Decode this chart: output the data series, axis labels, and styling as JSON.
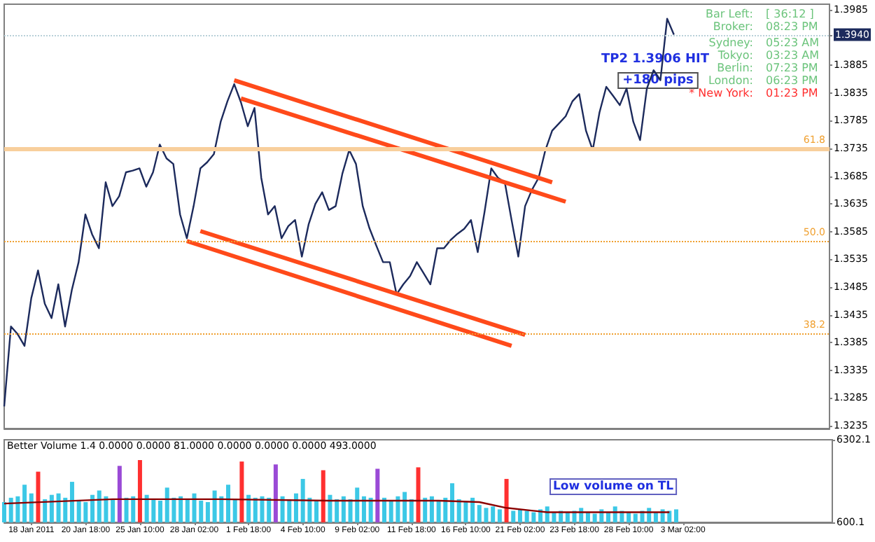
{
  "chart_data": [
    {
      "type": "line",
      "tick_labels": "y",
      "grid": false,
      "marker": "none",
      "ylim": [
        1.323,
        1.3995
      ],
      "yticks": [
        1.3985,
        {
          "value": 1.394,
          "label": "1.3940"
        },
        1.3885,
        1.3835,
        1.3785,
        1.3735,
        1.3685,
        1.3635,
        1.3585,
        1.3535,
        1.3485,
        1.3435,
        1.3385,
        1.3335,
        1.3285,
        1.3235
      ],
      "categories": [
        null,
        null,
        null,
        null,
        null,
        null,
        null,
        null,
        null,
        null,
        null,
        null,
        null,
        null,
        null,
        null,
        null,
        null,
        null,
        null,
        null,
        null,
        null,
        null,
        null,
        null,
        null,
        null,
        null,
        null,
        null,
        null,
        null,
        null,
        null,
        null,
        null,
        null,
        null,
        null,
        null,
        null,
        null,
        null,
        null,
        null,
        null,
        null,
        null,
        null,
        null,
        null,
        null,
        null,
        null,
        null,
        null,
        null,
        null,
        null,
        null,
        null,
        null,
        null,
        null,
        null,
        null,
        null,
        null,
        null,
        null,
        null,
        null,
        null,
        null,
        null,
        null,
        null,
        null,
        null,
        null,
        null,
        null,
        null,
        null,
        null,
        null,
        null,
        null,
        null,
        null,
        null,
        null,
        null,
        null,
        null,
        null,
        null,
        null,
        null,
        null,
        null,
        null,
        null,
        null,
        null,
        null,
        null,
        null,
        null,
        null,
        null,
        null,
        null,
        null,
        null,
        null,
        null,
        null,
        null,
        null,
        null,
        null
      ],
      "series": [
        {
          "color": "#1c2a5c",
          "values": [
            1.327,
            1.3414,
            1.34,
            1.3379,
            1.3465,
            1.3515,
            1.3455,
            1.3429,
            1.349,
            1.3414,
            1.348,
            1.353,
            1.3616,
            1.358,
            1.3555,
            1.3674,
            1.3631,
            1.3649,
            1.3692,
            1.3695,
            1.3699,
            1.3666,
            1.3692,
            1.3742,
            1.3717,
            1.3707,
            1.3616,
            1.3573,
            1.3631,
            1.3699,
            1.371,
            1.3725,
            1.3783,
            1.382,
            1.3851,
            1.3818,
            1.3775,
            1.3808,
            1.3682,
            1.3616,
            1.3631,
            1.3573,
            1.3595,
            1.3606,
            1.354,
            1.3598,
            1.3635,
            1.3656,
            1.3624,
            1.3631,
            1.369,
            1.3732,
            1.3707,
            1.3631,
            1.3591,
            1.356,
            1.353,
            1.353,
            1.3472,
            1.349,
            1.3505,
            1.353,
            1.351,
            1.349,
            1.3555,
            1.3555,
            1.357,
            1.3581,
            1.359,
            1.3606,
            1.3548,
            1.362,
            1.3699,
            1.3682,
            1.3674,
            1.3606,
            1.354,
            1.3631,
            1.366,
            1.3682,
            1.3732,
            1.3767,
            1.378,
            1.3793,
            1.382,
            1.3833,
            1.3767,
            1.3732,
            1.38,
            1.3846,
            1.383,
            1.3813,
            1.3843,
            1.3783,
            1.375,
            1.3843,
            1.3876,
            1.3858,
            1.3969,
            1.394,
            null,
            null,
            null,
            null,
            null,
            null,
            null,
            null,
            null,
            null,
            null,
            null,
            null,
            null,
            null,
            null,
            null,
            null,
            null,
            null,
            null,
            null,
            null
          ]
        },
        {
          "color": "#ff4a1a",
          "values": [
            null,
            null,
            null,
            null,
            null,
            null,
            null,
            null,
            null,
            null,
            null,
            null,
            null,
            null,
            null,
            null,
            null,
            null,
            null,
            null,
            null,
            null,
            null,
            null,
            null,
            null,
            null,
            null,
            null,
            null,
            null,
            null,
            null,
            null,
            1.3858,
            null,
            null,
            null,
            null,
            null,
            null,
            null,
            null,
            null,
            null,
            null,
            null,
            null,
            null,
            null,
            null,
            null,
            null,
            null,
            null,
            null,
            null,
            null,
            null,
            null,
            null,
            null,
            null,
            null,
            null,
            null,
            null,
            null,
            null,
            null,
            null,
            null,
            null,
            null,
            null,
            null,
            null,
            null,
            null,
            null,
            null,
            1.3674,
            null,
            null,
            null,
            null,
            null,
            null,
            null,
            null,
            null,
            null,
            null,
            null,
            null,
            null,
            null,
            null,
            null,
            null,
            null,
            null,
            null,
            null,
            null,
            null,
            null,
            null,
            null,
            null,
            null,
            null,
            null,
            null,
            null,
            null,
            null,
            null,
            null,
            null,
            null,
            null,
            null
          ]
        },
        {
          "color": "#ff4a1a",
          "values": [
            null,
            null,
            null,
            null,
            null,
            null,
            null,
            null,
            null,
            null,
            null,
            null,
            null,
            null,
            null,
            null,
            null,
            null,
            null,
            null,
            null,
            null,
            null,
            null,
            null,
            null,
            null,
            null,
            null,
            null,
            null,
            null,
            null,
            null,
            null,
            1.3825,
            null,
            null,
            null,
            null,
            null,
            null,
            null,
            null,
            null,
            null,
            null,
            null,
            null,
            null,
            null,
            null,
            null,
            null,
            null,
            null,
            null,
            null,
            null,
            null,
            null,
            null,
            null,
            null,
            null,
            null,
            null,
            null,
            null,
            null,
            null,
            null,
            null,
            null,
            null,
            null,
            null,
            null,
            null,
            null,
            null,
            null,
            null,
            1.3639,
            null,
            null,
            null,
            null,
            null,
            null,
            null,
            null,
            null,
            null,
            null,
            null,
            null,
            null,
            null,
            null,
            null,
            null,
            null,
            null,
            null,
            null,
            null,
            null,
            null,
            null,
            null,
            null,
            null,
            null,
            null,
            null,
            null,
            null,
            null,
            null,
            null,
            null,
            null
          ]
        },
        {
          "color": "#ff4a1a",
          "values": [
            null,
            null,
            null,
            null,
            null,
            null,
            null,
            null,
            null,
            null,
            null,
            null,
            null,
            null,
            null,
            null,
            null,
            null,
            null,
            null,
            null,
            null,
            null,
            null,
            null,
            null,
            null,
            null,
            null,
            1.3586,
            null,
            null,
            null,
            null,
            null,
            null,
            null,
            null,
            null,
            null,
            null,
            null,
            null,
            null,
            null,
            null,
            null,
            null,
            null,
            null,
            null,
            null,
            null,
            null,
            null,
            null,
            null,
            null,
            null,
            null,
            null,
            null,
            null,
            null,
            null,
            null,
            null,
            null,
            null,
            null,
            null,
            null,
            null,
            null,
            null,
            null,
            null,
            1.3399,
            null,
            null,
            null,
            null,
            null,
            null,
            null,
            null,
            null,
            null,
            null,
            null,
            null,
            null,
            null,
            null,
            null,
            null,
            null,
            null,
            null,
            null,
            null,
            null,
            null,
            null,
            null,
            null,
            null,
            null,
            null,
            null,
            null,
            null,
            null,
            null,
            null,
            null,
            null,
            null,
            null,
            null,
            null,
            null,
            null
          ]
        },
        {
          "color": "#ff4a1a",
          "values": [
            null,
            null,
            null,
            null,
            null,
            null,
            null,
            null,
            null,
            null,
            null,
            null,
            null,
            null,
            null,
            null,
            null,
            null,
            null,
            null,
            null,
            null,
            null,
            null,
            null,
            null,
            null,
            1.3568,
            null,
            null,
            null,
            null,
            null,
            null,
            null,
            null,
            null,
            null,
            null,
            null,
            null,
            null,
            null,
            null,
            null,
            null,
            null,
            null,
            null,
            null,
            null,
            null,
            null,
            null,
            null,
            null,
            null,
            null,
            null,
            null,
            null,
            null,
            null,
            null,
            null,
            null,
            null,
            null,
            null,
            null,
            null,
            null,
            null,
            null,
            null,
            1.3379,
            null,
            null,
            null,
            null,
            null,
            null,
            null,
            null,
            null,
            null,
            null,
            null,
            null,
            null,
            null,
            null,
            null,
            null,
            null,
            null,
            null,
            null,
            null,
            null,
            null,
            null,
            null,
            null,
            null,
            null,
            null,
            null,
            null,
            null,
            null,
            null,
            null,
            null,
            null,
            null,
            null,
            null,
            null,
            null,
            null,
            null,
            null
          ]
        }
      ],
      "ref_lines": [
        {
          "axis": "y",
          "value": 1.3735,
          "color": "#f8cf9c",
          "line_style": "solid"
        },
        {
          "axis": "y",
          "value": 1.3568,
          "color": "#f0a030",
          "line_style": "dotted"
        },
        {
          "axis": "y",
          "value": 1.3402,
          "color": "#f0a030",
          "line_style": "dotted"
        },
        {
          "axis": "y",
          "value": 1.394,
          "color": "#b8d0d8",
          "line_style": "dotted"
        }
      ],
      "annotations": [
        "Bar Left:",
        "[ 36:12 ]",
        "Broker:",
        "08:23 PM",
        "Sydney:",
        "05:23 AM",
        "Tokyo:",
        "03:23 AM",
        "Berlin:",
        "07:23 PM",
        "London:",
        "06:23 PM",
        "* New York:",
        "01:23 PM",
        "TP2 1.3906 HIT",
        "+180 pips",
        {
          "text": "61.8",
          "y": 1.3735
        },
        {
          "text": "50.0",
          "y": 1.3568
        },
        {
          "text": "38.2",
          "y": 1.3402
        }
      ]
    },
    {
      "type": "bar",
      "title": "Better Volume 1.4 0.0000 0.0000 81.0000 0.0000 0.0000 0.0000 493.0000",
      "grid": false,
      "ylim": [
        600.1,
        6302.1
      ],
      "yticks": [
        600.1,
        6302.1
      ],
      "categories": [
        null,
        null,
        null,
        null,
        "18 Jan 2011",
        null,
        null,
        null,
        null,
        null,
        null,
        null,
        "20 Jan 18:00",
        null,
        null,
        null,
        null,
        null,
        null,
        null,
        "25 Jan 10:00",
        null,
        null,
        null,
        null,
        null,
        null,
        null,
        "28 Jan 02:00",
        null,
        null,
        null,
        null,
        null,
        null,
        null,
        "1 Feb 18:00",
        null,
        null,
        null,
        null,
        null,
        null,
        null,
        "4 Feb 10:00",
        null,
        null,
        null,
        null,
        null,
        null,
        null,
        "9 Feb 02:00",
        null,
        null,
        null,
        null,
        null,
        null,
        null,
        "11 Feb 18:00",
        null,
        null,
        null,
        null,
        null,
        null,
        null,
        "16 Feb 10:00",
        null,
        null,
        null,
        null,
        null,
        null,
        null,
        "21 Feb 02:00",
        null,
        null,
        null,
        null,
        null,
        null,
        null,
        "23 Feb 18:00",
        null,
        null,
        null,
        null,
        null,
        null,
        null,
        "28 Feb 10:00",
        null,
        null,
        null,
        null,
        null,
        null,
        null,
        "3 Mar 02:00",
        null,
        null,
        null,
        null,
        null,
        null,
        null,
        null,
        null,
        null,
        null,
        null,
        null,
        null,
        null,
        null,
        null,
        null,
        null,
        null,
        null,
        null
      ],
      "series": [
        {
          "type": "bar",
          "color": "#3cc8e6",
          "values": [
            2000,
            2300,
            2400,
            3200,
            2600,
            4100,
            2200,
            2500,
            2600,
            2300,
            3400,
            2100,
            2000,
            2500,
            2800,
            2400,
            2200,
            4500,
            2300,
            2400,
            4900,
            2500,
            2200,
            2100,
            3000,
            2300,
            2400,
            2200,
            2600,
            2100,
            2000,
            2800,
            2400,
            3200,
            2200,
            4800,
            2500,
            2300,
            2400,
            2300,
            4600,
            2400,
            2200,
            2600,
            3600,
            2300,
            2100,
            4200,
            2500,
            2200,
            2400,
            2200,
            3000,
            2400,
            2300,
            4300,
            2300,
            2100,
            2400,
            2700,
            2200,
            4400,
            2300,
            2400,
            2100,
            2300,
            3300,
            2200,
            2000,
            2300,
            1800,
            1600,
            1700,
            1500,
            3600,
            1400,
            1500,
            1400,
            1300,
            1500,
            1700,
            1300,
            1400,
            1300,
            1400,
            1600,
            1300,
            1200,
            1500,
            1300,
            1700,
            1400,
            1300,
            1200,
            1400,
            1600,
            1300,
            1500,
            1400,
            1500,
            null,
            null,
            null,
            null,
            null,
            null,
            null,
            null,
            null,
            null,
            null,
            null,
            null,
            null,
            null,
            null,
            null,
            null,
            null,
            null,
            null,
            null,
            null
          ],
          "colors": [
            null,
            null,
            null,
            null,
            null,
            "#ff3030",
            null,
            null,
            null,
            null,
            null,
            null,
            null,
            null,
            null,
            null,
            null,
            "#9a4ad6",
            null,
            null,
            "#ff3030",
            null,
            null,
            null,
            null,
            null,
            null,
            null,
            null,
            null,
            null,
            null,
            null,
            null,
            null,
            "#ff3030",
            null,
            null,
            null,
            null,
            "#9a4ad6",
            null,
            null,
            null,
            null,
            null,
            null,
            "#ff3030",
            null,
            null,
            null,
            null,
            null,
            null,
            null,
            "#9a4ad6",
            null,
            null,
            null,
            null,
            null,
            "#ff3030",
            null,
            null,
            null,
            null,
            null,
            null,
            null,
            null,
            null,
            null,
            null,
            null,
            "#ff3030",
            null,
            null,
            null,
            null,
            null,
            null,
            null,
            null,
            null,
            null,
            null,
            null,
            null,
            null,
            null,
            null,
            null,
            null,
            null,
            null,
            null,
            null,
            null,
            null,
            null,
            null,
            null,
            null,
            null,
            null,
            null,
            null,
            null,
            null,
            null,
            null,
            null,
            null,
            null,
            null,
            null,
            null,
            null,
            null,
            null,
            null,
            null,
            null
          ]
        },
        {
          "type": "line",
          "color": "#8b0000",
          "values": [
            1900,
            null,
            null,
            null,
            null,
            null,
            null,
            null,
            null,
            null,
            null,
            null,
            null,
            null,
            null,
            null,
            2200,
            null,
            null,
            null,
            null,
            null,
            null,
            null,
            null,
            null,
            null,
            null,
            null,
            null,
            null,
            null,
            2200,
            null,
            null,
            null,
            null,
            null,
            null,
            null,
            null,
            null,
            null,
            null,
            null,
            null,
            null,
            null,
            2100,
            null,
            null,
            null,
            null,
            null,
            null,
            null,
            null,
            null,
            null,
            null,
            null,
            null,
            null,
            null,
            2100,
            null,
            null,
            null,
            null,
            null,
            2000,
            null,
            null,
            null,
            1600,
            null,
            null,
            null,
            null,
            null,
            1300,
            null,
            null,
            null,
            null,
            null,
            null,
            null,
            null,
            null,
            null,
            null,
            null,
            null,
            null,
            null,
            null,
            null,
            1300,
            null,
            null,
            null,
            null,
            null,
            null,
            null,
            null,
            null,
            null,
            null,
            null,
            null,
            null,
            null,
            null,
            null,
            null,
            null,
            null,
            null,
            null,
            null,
            null
          ]
        }
      ],
      "annotations": [
        "Low volume on TL"
      ]
    }
  ]
}
